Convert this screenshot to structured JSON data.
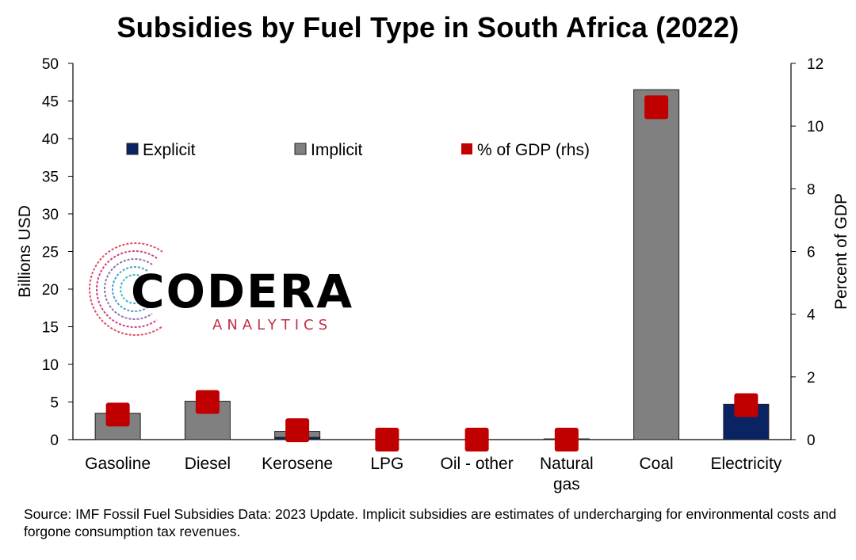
{
  "chart_data": {
    "type": "bar",
    "title": "Subsidies by Fuel Type in South Africa (2022)",
    "categories": [
      "Gasoline",
      "Diesel",
      "Kerosene",
      "LPG",
      "Oil - other",
      "Natural gas",
      "Coal",
      "Electricity"
    ],
    "category_labels": [
      [
        "Gasoline"
      ],
      [
        "Diesel"
      ],
      [
        "Kerosene"
      ],
      [
        "LPG"
      ],
      [
        "Oil - other"
      ],
      [
        "Natural",
        "gas"
      ],
      [
        "Coal"
      ],
      [
        "Electricity"
      ]
    ],
    "stacked": true,
    "series": [
      {
        "name": "Explicit",
        "axis": "left",
        "color": "#0a2463",
        "values": [
          0,
          0,
          0.3,
          0,
          0,
          0,
          0,
          4.7
        ]
      },
      {
        "name": "Implicit",
        "axis": "left",
        "color": "#808080",
        "values": [
          3.5,
          5.1,
          0.8,
          0,
          0,
          0.1,
          46.5,
          0
        ]
      },
      {
        "name": "% of GDP (rhs)",
        "axis": "right",
        "type": "marker",
        "color": "#c00000",
        "values": [
          0.8,
          1.2,
          0.3,
          0.0,
          0.0,
          0.0,
          10.6,
          1.1
        ]
      }
    ],
    "ylabel": "Billions USD",
    "ylim": [
      0,
      50
    ],
    "yticks": [
      0,
      5,
      10,
      15,
      20,
      25,
      30,
      35,
      40,
      45,
      50
    ],
    "y2label": "Percent of GDP",
    "y2lim": [
      0,
      12
    ],
    "y2ticks": [
      0,
      2,
      4,
      6,
      8,
      10,
      12
    ],
    "grid": false,
    "legend_position": "top-left inside"
  },
  "logo": {
    "name": "CODERA",
    "sub": "ANALYTICS"
  },
  "footer": {
    "source": "Source: IMF Fossil Fuel Subsidies Data: 2023 Update. Implicit subsidies are estimates of undercharging for environmental costs and forgone consumption tax revenues."
  }
}
